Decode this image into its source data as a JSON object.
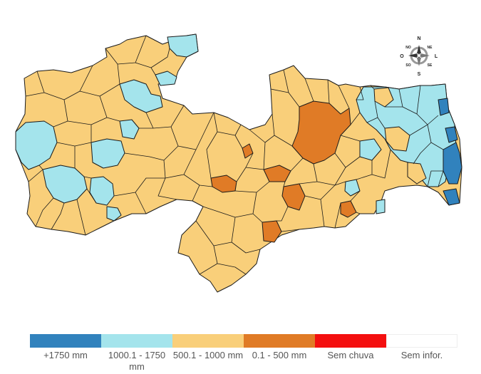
{
  "compass": {
    "north": "N",
    "south": "S",
    "east": "L",
    "west": "O",
    "northeast": "NE",
    "northwest": "NO",
    "southeast": "SE",
    "southwest": "SO"
  },
  "legend": {
    "items": [
      {
        "label": "+1750 mm",
        "color": "#3182bd"
      },
      {
        "label": "1000.1 - 1750 mm",
        "color": "#a4e4ec"
      },
      {
        "label": "500.1 - 1000 mm",
        "color": "#f9cf7a"
      },
      {
        "label": "0.1 - 500 mm",
        "color": "#e07b26"
      },
      {
        "label": "Sem chuva",
        "color": "#f40f0f"
      },
      {
        "label": "Sem infor.",
        "color": "#ffffff"
      }
    ]
  },
  "colors": {
    "above_1750": "#3182bd",
    "range_1000_1750": "#a4e4ec",
    "range_500_1000": "#f9cf7a",
    "range_0_500": "#e07b26",
    "no_rain": "#f40f0f",
    "no_info": "#ffffff",
    "border": "#1a1a1a"
  }
}
